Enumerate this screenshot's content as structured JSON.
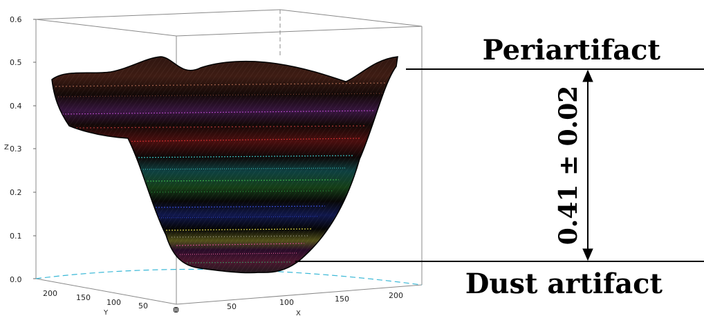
{
  "plot": {
    "z_axis": {
      "label": "Z",
      "ticks": [
        "0.6",
        "0.5",
        "0.4",
        "0.3",
        "0.2",
        "0.1",
        "0.0"
      ]
    },
    "y_axis": {
      "label": "Y",
      "ticks": [
        "200",
        "150",
        "100",
        "50",
        "0"
      ]
    },
    "x_axis": {
      "label": "X",
      "ticks": [
        "0",
        "50",
        "100",
        "150",
        "200"
      ]
    }
  },
  "annotations": {
    "top_label": "Periartifact",
    "bottom_label": "Dust artifact",
    "measurement": "0.41 ± 0.02"
  },
  "colors": {
    "band_rust": "#a0523a",
    "band_purple": "#8e3aa6",
    "band_red": "#b51c1c",
    "band_cyan": "#2fb3b3",
    "band_green": "#2f9a3a",
    "band_blue": "#2a3fb8",
    "band_yellow": "#d8d23a",
    "band_magenta": "#c2387f"
  }
}
